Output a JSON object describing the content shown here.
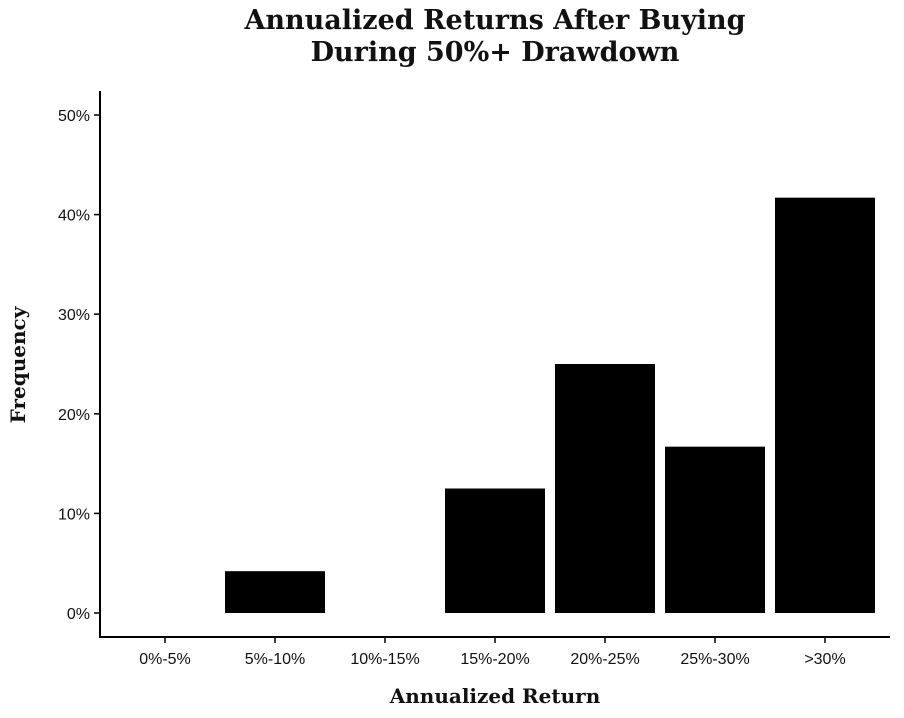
{
  "chart_data": {
    "type": "bar",
    "title": [
      "Annualized Returns After Buying",
      "During 50%+ Drawdown"
    ],
    "xlabel": "Annualized Return",
    "ylabel": "Frequency",
    "categories": [
      "0%-5%",
      "5%-10%",
      "10%-15%",
      "15%-20%",
      "20%-25%",
      "25%-30%",
      ">30%"
    ],
    "values": [
      0,
      4.2,
      0,
      12.5,
      25.0,
      16.7,
      41.7
    ],
    "ylim": [
      0,
      52
    ],
    "yticks": [
      0,
      10,
      20,
      30,
      40,
      50
    ],
    "ytick_labels": [
      "0%",
      "10%",
      "20%",
      "30%",
      "40%",
      "50%"
    ],
    "bar_color": "#000000",
    "grid": false,
    "legend": "none"
  }
}
